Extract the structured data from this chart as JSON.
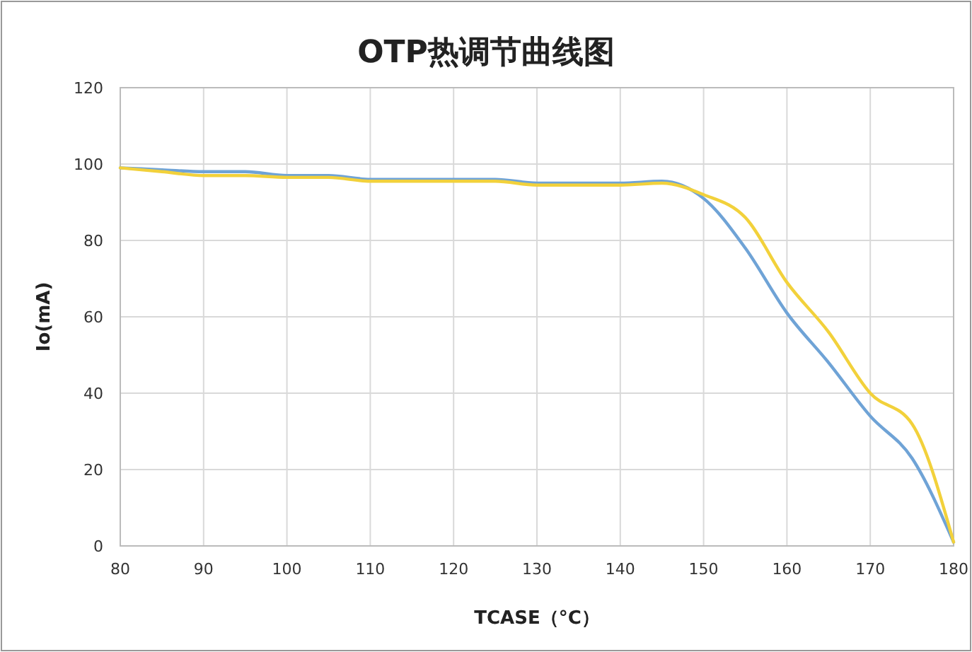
{
  "chart_data": {
    "type": "line",
    "title": "OTP热调节曲线图",
    "xlabel": "TCASE（°C）",
    "ylabel": "Io(mA)",
    "x": [
      80,
      85,
      90,
      95,
      100,
      105,
      110,
      115,
      120,
      125,
      130,
      135,
      140,
      145,
      150,
      155,
      160,
      165,
      170,
      175,
      180
    ],
    "series": [
      {
        "color": "#6fa3d6",
        "values": [
          99,
          98.5,
          98,
          98,
          97,
          97,
          96,
          96,
          96,
          96,
          95,
          95,
          95,
          95.5,
          91,
          78,
          61,
          48,
          34,
          23,
          1
        ]
      },
      {
        "color": "#f2d13b",
        "values": [
          99,
          98,
          97,
          97,
          96.5,
          96.5,
          95.5,
          95.5,
          95.5,
          95.5,
          94.5,
          94.5,
          94.5,
          95,
          92,
          86,
          69,
          56,
          40,
          32,
          1
        ]
      }
    ],
    "xlim": [
      80,
      180
    ],
    "xticks": [
      80,
      90,
      100,
      110,
      120,
      130,
      140,
      150,
      160,
      170,
      180
    ],
    "ylim": [
      0,
      120
    ],
    "yticks": [
      0,
      20,
      40,
      60,
      80,
      100,
      120
    ],
    "grid": true,
    "marker": "none",
    "line_style": "solid"
  }
}
